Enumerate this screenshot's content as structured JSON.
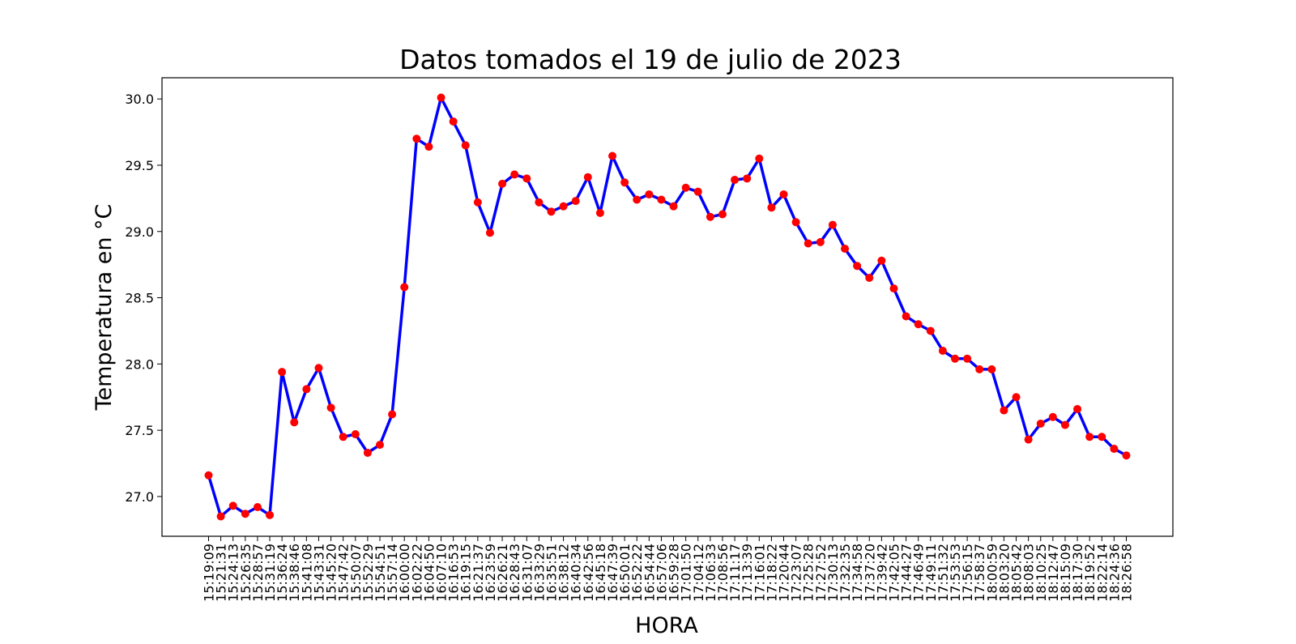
{
  "chart_data": {
    "type": "line",
    "title": "Datos tomados el 19 de julio de 2023",
    "xlabel": "HORA",
    "ylabel": "Temperatura en °C",
    "ylim": [
      26.7,
      30.16
    ],
    "yticks": [
      27.0,
      27.5,
      28.0,
      28.5,
      29.0,
      29.5,
      30.0
    ],
    "grid": false,
    "line_color": "#0000ff",
    "marker_color": "#ff0000",
    "categories": [
      "15:19:09",
      "15:21:31",
      "15:24:13",
      "15:26:35",
      "15:28:57",
      "15:31:19",
      "15:36:24",
      "15:38:46",
      "15:41:08",
      "15:43:31",
      "15:45:20",
      "15:47:42",
      "15:50:07",
      "15:52:29",
      "15:54:51",
      "15:57:14",
      "16:00:00",
      "16:02:22",
      "16:04:50",
      "16:07:10",
      "16:16:53",
      "16:19:15",
      "16:21:37",
      "16:23:59",
      "16:26:21",
      "16:28:43",
      "16:31:07",
      "16:33:29",
      "16:35:51",
      "16:38:12",
      "16:40:34",
      "16:42:56",
      "16:45:18",
      "16:47:39",
      "16:50:01",
      "16:52:22",
      "16:54:44",
      "16:57:06",
      "16:59:28",
      "17:01:50",
      "17:04:12",
      "17:06:33",
      "17:08:56",
      "17:11:17",
      "17:13:39",
      "17:16:01",
      "17:18:22",
      "17:20:44",
      "17:23:07",
      "17:25:28",
      "17:27:52",
      "17:30:13",
      "17:32:35",
      "17:34:58",
      "17:37:20",
      "17:39:42",
      "17:42:05",
      "17:44:27",
      "17:46:49",
      "17:49:11",
      "17:51:32",
      "17:53:53",
      "17:56:15",
      "17:58:37",
      "18:00:59",
      "18:03:20",
      "18:05:42",
      "18:08:03",
      "18:10:25",
      "18:12:47",
      "18:15:09",
      "18:17:30",
      "18:19:52",
      "18:22:14",
      "18:24:36",
      "18:26:58"
    ],
    "series": [
      {
        "values": [
          27.16,
          26.85,
          26.93,
          26.87,
          26.92,
          26.86,
          27.94,
          27.56,
          27.81,
          27.97,
          27.67,
          27.45,
          27.47,
          27.33,
          27.39,
          27.62,
          28.58,
          29.7,
          29.64,
          30.01,
          29.83,
          29.65,
          29.22,
          28.99,
          29.36,
          29.43,
          29.4,
          29.22,
          29.15,
          29.19,
          29.23,
          29.41,
          29.14,
          29.57,
          29.37,
          29.24,
          29.28,
          29.24,
          29.19,
          29.33,
          29.3,
          29.11,
          29.13,
          29.39,
          29.4,
          29.55,
          29.18,
          29.28,
          29.07,
          28.91,
          28.92,
          29.05,
          28.87,
          28.74,
          28.65,
          28.78,
          28.57,
          28.36,
          28.3,
          28.25,
          28.1,
          28.04,
          28.04,
          27.96,
          27.96,
          27.65,
          27.75,
          27.43,
          27.55,
          27.6,
          27.54,
          27.66,
          27.45,
          27.45,
          27.36,
          27.31
        ]
      }
    ]
  }
}
